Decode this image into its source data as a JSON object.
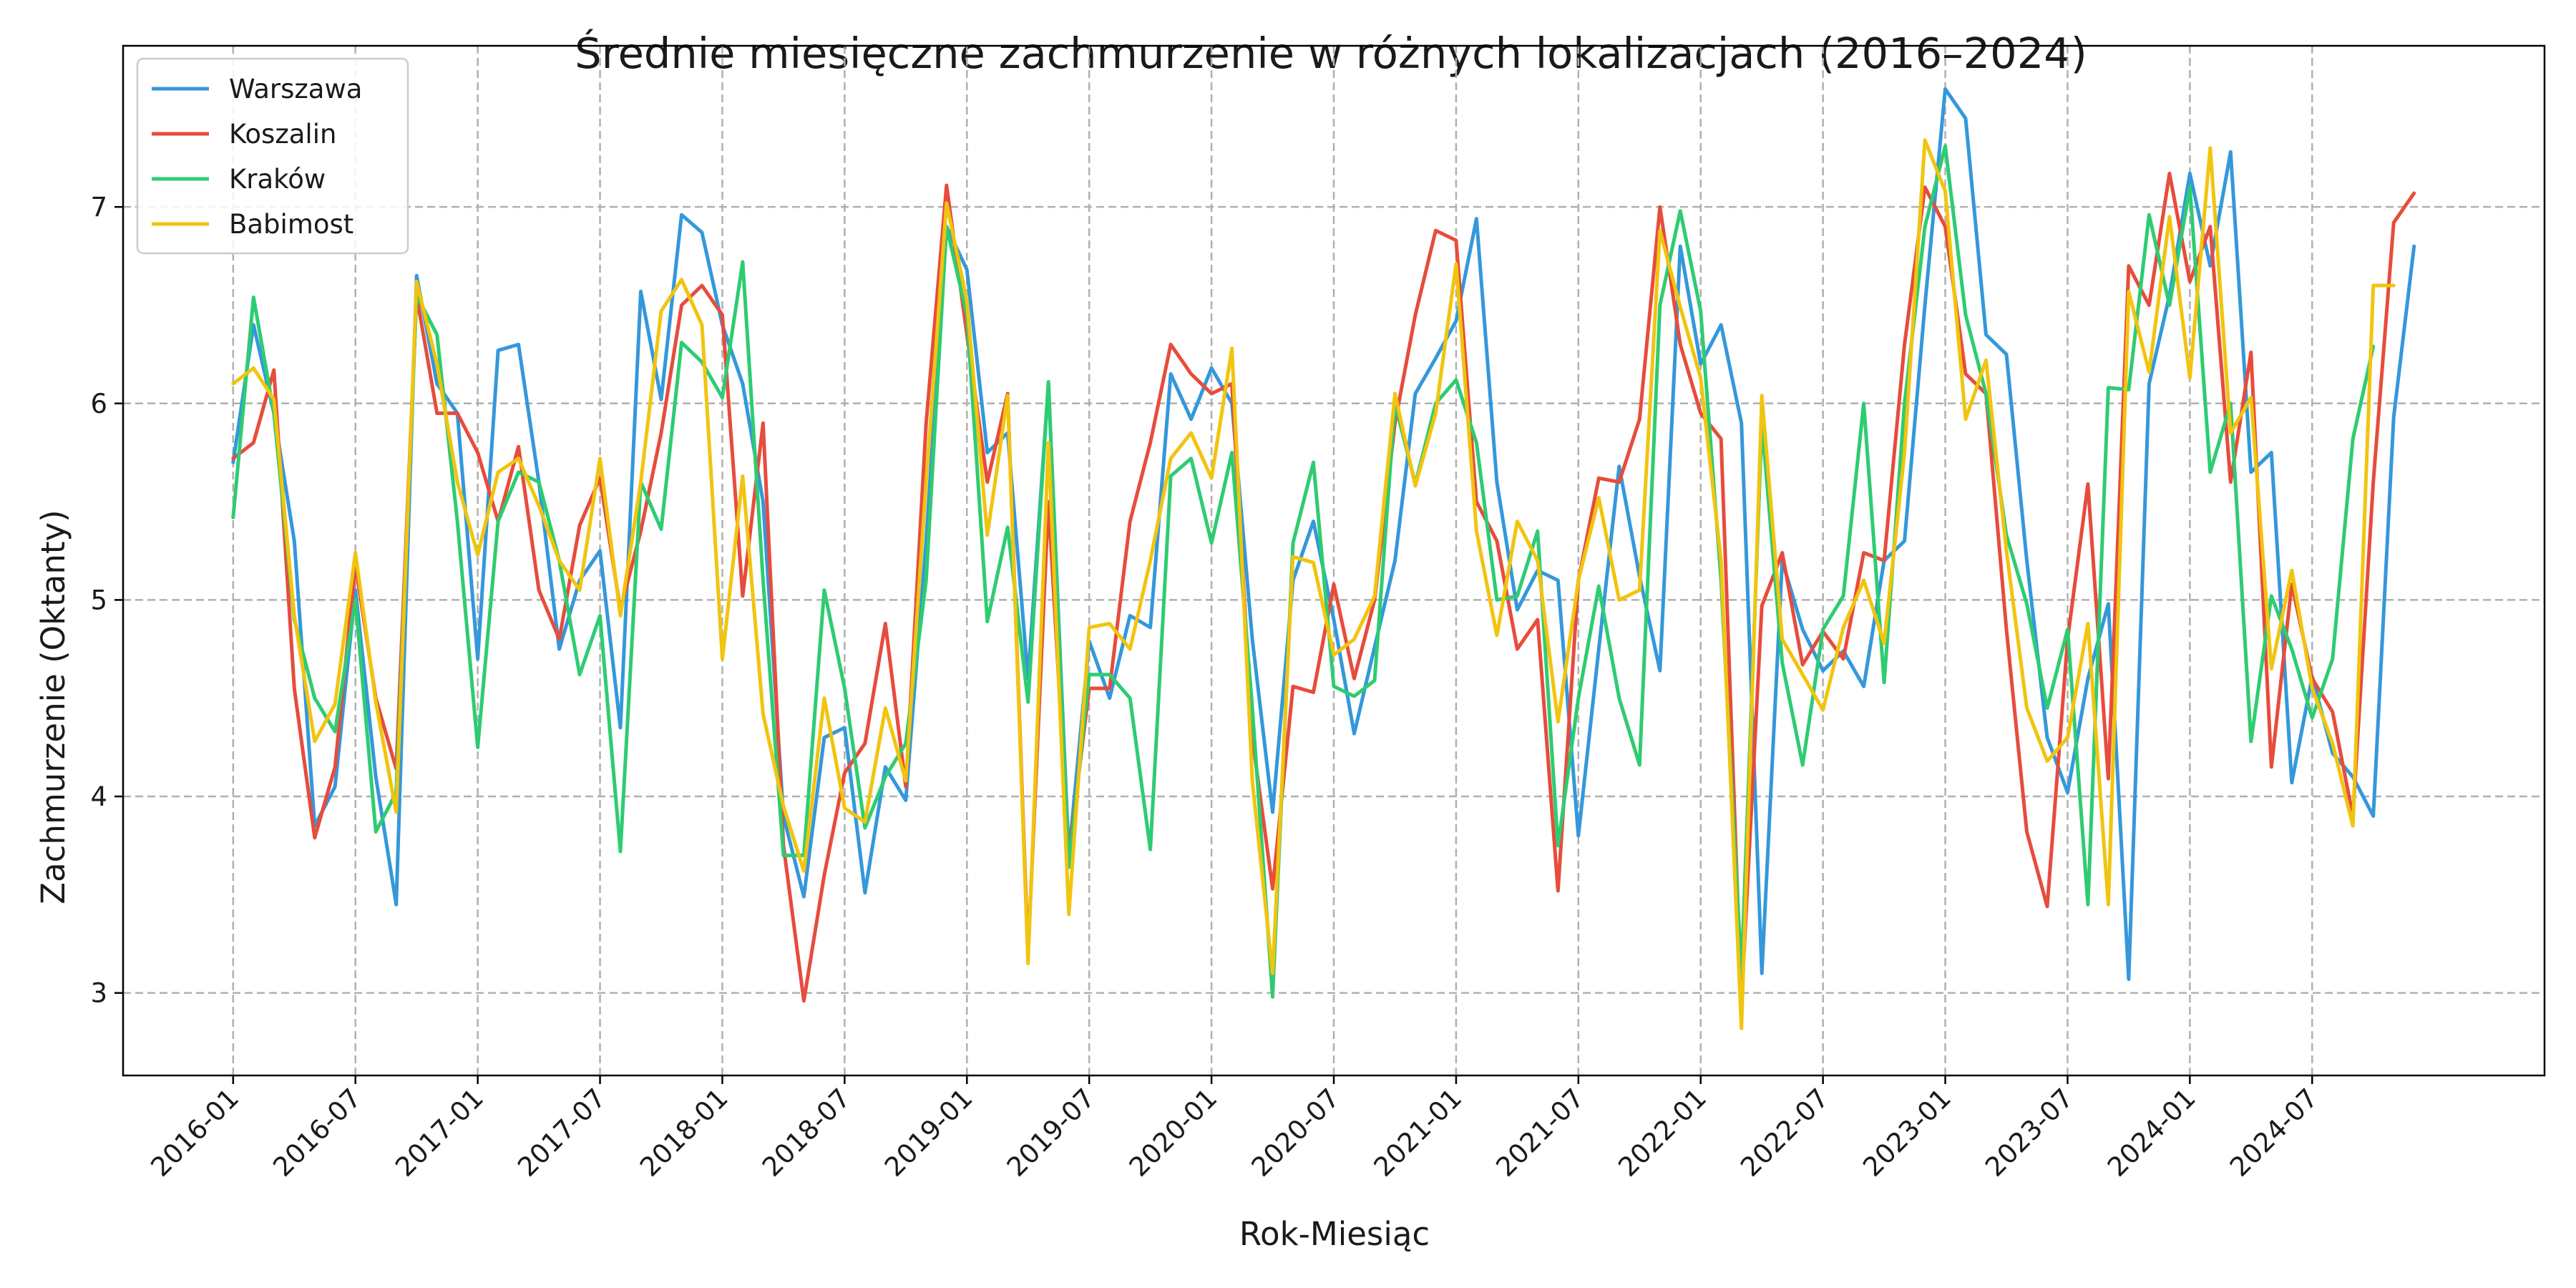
{
  "chart_data": {
    "type": "line",
    "title": "Średnie miesięczne zachmurzenie w różnych lokalizacjach (2016–2024)",
    "xlabel": "Rok-Miesiąc",
    "ylabel": "Zachmurzenie (Oktanty)",
    "grid": true,
    "legend_position": "top-left",
    "x_start": "2016-01",
    "x_tick_labels": [
      "2016-01",
      "2016-07",
      "2017-01",
      "2017-07",
      "2018-01",
      "2018-07",
      "2019-01",
      "2019-07",
      "2020-01",
      "2020-07",
      "2021-01",
      "2021-07",
      "2022-01",
      "2022-07",
      "2023-01",
      "2023-07",
      "2024-01",
      "2024-07"
    ],
    "x_tick_indices": [
      0,
      6,
      12,
      18,
      24,
      30,
      36,
      42,
      48,
      54,
      60,
      66,
      72,
      78,
      84,
      90,
      96,
      102
    ],
    "x_range": [
      -5.4,
      113.4
    ],
    "y_ticks": [
      3,
      4,
      5,
      6,
      7
    ],
    "y_tick_labels": [
      "3",
      "4",
      "5",
      "6",
      "7"
    ],
    "ylim": [
      2.58,
      7.82
    ],
    "series": [
      {
        "name": "Warszawa",
        "color": "#3498db",
        "values": [
          5.7,
          6.4,
          5.95,
          5.3,
          3.85,
          4.05,
          5.05,
          4.1,
          3.45,
          6.65,
          6.1,
          5.95,
          4.7,
          6.27,
          6.3,
          5.6,
          4.75,
          5.1,
          5.25,
          4.35,
          6.57,
          6.02,
          6.96,
          6.87,
          6.4,
          6.1,
          5.5,
          3.9,
          3.49,
          4.3,
          4.35,
          3.51,
          4.15,
          3.98,
          5.3,
          6.9,
          6.68,
          5.75,
          5.85,
          4.6,
          6.1,
          3.7,
          4.79,
          4.5,
          4.92,
          4.86,
          6.15,
          5.92,
          6.18,
          6.0,
          4.8,
          3.92,
          5.1,
          5.4,
          4.9,
          4.32,
          4.76,
          5.2,
          6.05,
          6.23,
          6.42,
          6.94,
          5.6,
          4.95,
          5.15,
          5.1,
          3.8,
          4.75,
          5.68,
          5.12,
          4.64,
          6.8,
          6.2,
          6.4,
          5.9,
          3.1,
          5.2,
          4.85,
          4.64,
          4.74,
          4.56,
          5.2,
          5.3,
          6.5,
          7.6,
          7.45,
          6.35,
          6.25,
          5.2,
          4.3,
          4.02,
          4.6,
          4.98,
          3.07,
          6.1,
          6.55,
          7.17,
          6.7,
          7.28,
          5.65,
          5.75,
          4.07,
          4.61,
          4.22,
          4.1,
          3.9,
          5.93,
          6.8
        ]
      },
      {
        "name": "Koszalin",
        "color": "#e74c3c",
        "values": [
          5.72,
          5.8,
          6.17,
          4.55,
          3.79,
          4.15,
          5.18,
          4.5,
          4.14,
          6.55,
          5.95,
          5.95,
          5.75,
          5.4,
          5.78,
          5.05,
          4.8,
          5.38,
          5.62,
          4.95,
          5.35,
          5.85,
          6.5,
          6.6,
          6.45,
          5.02,
          5.9,
          3.75,
          2.96,
          3.6,
          4.12,
          4.27,
          4.88,
          4.05,
          5.9,
          7.11,
          6.35,
          5.6,
          6.05,
          3.2,
          5.5,
          3.7,
          4.55,
          4.55,
          5.4,
          5.8,
          6.3,
          6.15,
          6.05,
          6.1,
          4.3,
          3.53,
          4.56,
          4.53,
          5.08,
          4.6,
          5.0,
          5.9,
          6.45,
          6.88,
          6.83,
          5.5,
          5.3,
          4.75,
          4.9,
          3.52,
          5.1,
          5.62,
          5.6,
          5.92,
          7.0,
          6.3,
          5.95,
          5.82,
          2.95,
          4.97,
          5.24,
          4.67,
          4.84,
          4.7,
          5.24,
          5.2,
          6.3,
          7.1,
          6.9,
          6.15,
          6.05,
          4.85,
          3.82,
          3.44,
          4.8,
          5.59,
          4.09,
          6.7,
          6.5,
          7.17,
          6.62,
          6.9,
          5.6,
          6.26,
          4.15,
          5.08,
          4.6,
          4.43,
          3.9,
          5.6,
          6.92,
          7.07
        ]
      },
      {
        "name": "Kraków",
        "color": "#2ecc71",
        "values": [
          5.42,
          6.54,
          5.95,
          4.9,
          4.5,
          4.33,
          5.0,
          3.82,
          4.02,
          6.55,
          6.35,
          5.4,
          4.25,
          5.4,
          5.65,
          5.6,
          5.2,
          4.62,
          4.92,
          3.72,
          5.6,
          5.36,
          6.31,
          6.21,
          6.03,
          6.72,
          5.1,
          3.7,
          3.7,
          5.05,
          4.55,
          3.84,
          4.1,
          4.27,
          5.1,
          6.9,
          6.45,
          4.89,
          5.37,
          4.48,
          6.11,
          3.64,
          4.62,
          4.62,
          4.5,
          3.73,
          5.63,
          5.72,
          5.29,
          5.75,
          4.45,
          2.98,
          5.29,
          5.7,
          4.56,
          4.51,
          4.59,
          6.0,
          5.59,
          6.0,
          6.12,
          5.8,
          5.0,
          5.02,
          5.35,
          3.75,
          4.5,
          5.07,
          4.5,
          4.16,
          6.5,
          6.98,
          6.47,
          5.1,
          3.1,
          5.9,
          4.68,
          4.16,
          4.85,
          5.02,
          6.0,
          4.58,
          6.0,
          6.9,
          7.31,
          6.45,
          6.05,
          5.33,
          4.98,
          4.45,
          4.85,
          3.45,
          6.08,
          6.07,
          6.96,
          6.5,
          7.1,
          5.65,
          6.0,
          4.28,
          5.02,
          4.75,
          4.4,
          4.7,
          5.82,
          6.29
        ]
      },
      {
        "name": "Babimost",
        "color": "#f1c40f",
        "values": [
          6.1,
          6.18,
          6.02,
          4.92,
          4.28,
          4.47,
          5.24,
          4.48,
          3.92,
          6.62,
          6.2,
          5.6,
          5.23,
          5.65,
          5.72,
          5.48,
          5.2,
          5.05,
          5.72,
          4.92,
          5.6,
          6.47,
          6.63,
          6.4,
          4.7,
          5.63,
          4.42,
          3.95,
          3.62,
          4.5,
          3.94,
          3.87,
          4.45,
          4.08,
          5.6,
          7.02,
          6.52,
          5.33,
          6.04,
          3.15,
          5.8,
          3.4,
          4.86,
          4.88,
          4.75,
          5.2,
          5.72,
          5.85,
          5.62,
          6.28,
          4.08,
          3.1,
          5.22,
          5.19,
          4.72,
          4.8,
          5.02,
          6.05,
          5.58,
          5.95,
          6.71,
          5.35,
          4.82,
          5.4,
          5.2,
          4.38,
          5.1,
          5.52,
          5.0,
          5.05,
          6.88,
          6.49,
          6.13,
          5.2,
          2.82,
          6.04,
          4.8,
          4.62,
          4.44,
          4.86,
          5.1,
          4.78,
          5.75,
          7.34,
          7.08,
          5.92,
          6.22,
          5.25,
          4.45,
          4.18,
          4.3,
          4.88,
          3.45,
          6.57,
          6.16,
          6.95,
          6.13,
          7.3,
          5.85,
          6.03,
          4.65,
          5.15,
          4.55,
          4.27,
          3.85,
          6.6,
          6.6
        ]
      }
    ]
  }
}
